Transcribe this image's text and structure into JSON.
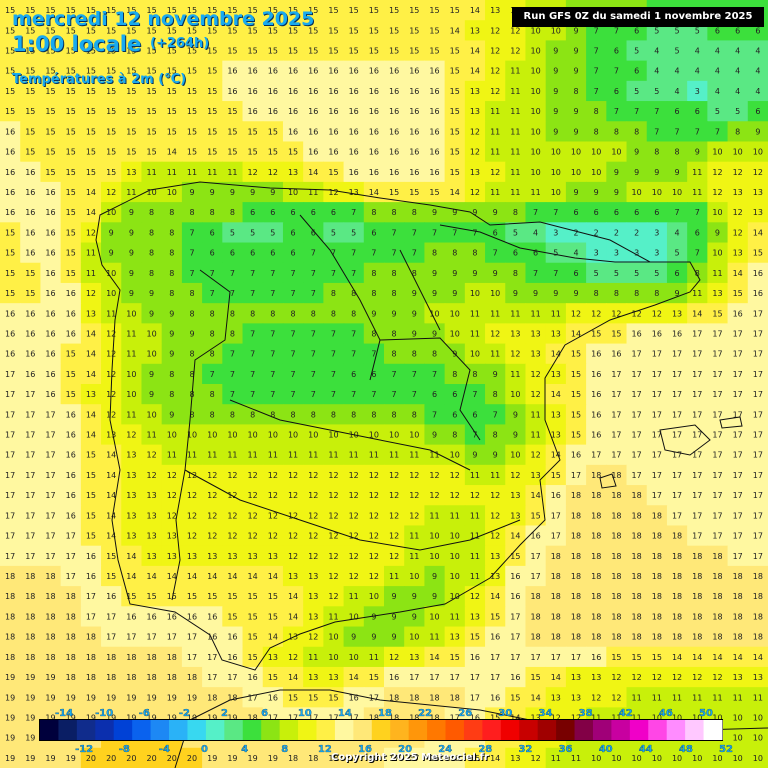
{
  "header": {
    "date_label": "mercredi 12 novembre 2025",
    "time_label": "1:00 locale",
    "lead_label": "(+264h)",
    "parameter_label": "Températures à 2m (°C)"
  },
  "run_label": "Run GFS 0Z du samedi 1 novembre 2025",
  "copyright": "Copyright 2025 Meteociel.fr",
  "legend": {
    "upper_ticks": [
      "-14",
      "-10",
      "-6",
      "-2",
      "2",
      "6",
      "10",
      "14",
      "18",
      "22",
      "26",
      "30",
      "34",
      "38",
      "42",
      "46",
      "50"
    ],
    "lower_ticks": [
      "-12",
      "-8",
      "-4",
      "0",
      "4",
      "8",
      "12",
      "16",
      "20",
      "24",
      "28",
      "32",
      "36",
      "40",
      "44",
      "48",
      "52"
    ],
    "colors": [
      "#00003c",
      "#0a1e64",
      "#102c8c",
      "#0b2fae",
      "#0041d6",
      "#0a62ee",
      "#1d88f4",
      "#2ab2f7",
      "#38d8f0",
      "#55f0c8",
      "#5ae884",
      "#3ce03c",
      "#8ce414",
      "#c8f00a",
      "#f0f514",
      "#fff046",
      "#fff8a0",
      "#ffe878",
      "#ffd21e",
      "#ffb41e",
      "#ff960a",
      "#ff7800",
      "#ff5a00",
      "#ff3c14",
      "#ff1e1e",
      "#f00000",
      "#c80000",
      "#a00000",
      "#780000",
      "#820046",
      "#a00078",
      "#c800a0",
      "#f000c8",
      "#ff46e6",
      "#ff8cff",
      "#ffc8ff",
      "#ffffff"
    ]
  },
  "temperature_grid": {
    "columns": 38,
    "rows": 38,
    "rows_data": [
      "15 15 15 15 15 15 15 15 15 15 15 15 15 15 15 15 15 15 15 15 15 15 15 14 13 12 11 10 9 9 8 8 7 7 6 6 6 6",
      "15 15 15 15 15 15 15 15 15 15 15 15 15 15 15 15 15 15 15 15 15 15 14 13 12 12 10 10 9 7 7 6 5 5 5 6 6 6",
      "15 15 15 15 15 15 15 15 15 15 15 15 15 15 15 15 15 15 15 15 15 15 15 14 12 12 10 9 9 7 6 5 4 5 4 4 4 4",
      "15 15 15 15 15 15 15 15 15 15 15 16 16 16 16 16 16 16 16 16 16 16 15 14 12 11 10 9 9 7 7 6 4 4 4 4 4 4",
      "15 15 15 15 15 15 15 15 15 15 15 16 16 16 16 16 16 16 16 16 16 16 15 13 12 11 10 9 8 7 6 5 5 4 3 4 4 4",
      "15 15 15 15 15 15 15 15 15 15 15 15 16 16 16 16 16 16 16 16 16 16 15 13 11 11 10 9 9 8 7 7 7 6 6 5 5 6",
      "16 15 15 15 15 15 15 15 15 15 15 15 15 15 16 16 16 16 16 16 16 16 15 12 11 11 10 9 9 8 8 8 7 7 7 7 8 9",
      "16 15 15 15 15 15 15 15 14 15 15 15 15 15 15 16 16 16 16 16 16 16 15 12 11 11 10 10 10 10 10 9 8 8 9 10 10 10",
      "16 16 15 15 15 15 13 11 11 11 11 11 12 12 13 14 15 16 16 16 16 16 15 13 12 11 10 10 10 10 9 9 9 9 11 12 12 12",
      "16 16 16 15 14 12 11 10 10 9 9 9 9 9 10 11 12 13 14 15 15 15 14 12 11 11 11 10 9 9 9 10 10 10 11 12 13 13",
      "16 16 16 15 14 10 9 8 8 8 8 8 6 6 6 6 6 7 8 8 8 9 9 9 9 8 7 7 6 6 6 6 6 7 7 10 12 13",
      "15 16 16 15 12 9 9 8 8 7 6 5 5 5 6 6 5 5 6 7 7 7 7 7 6 5 4 3 2 2 2 2 3 4 6 9 12 14",
      "15 16 16 15 11 9 9 8 8 7 6 6 6 6 6 7 7 7 7 7 7 8 8 8 7 6 6 5 4 3 3 3 3 5 7 10 13 15",
      "15 15 16 15 11 10 9 8 8 7 7 7 7 7 7 7 7 7 8 8 8 9 9 9 9 8 7 7 6 5 5 5 5 6 8 11 14 16",
      "15 15 16 16 12 10 9 9 8 8 7 7 7 7 7 7 8 8 8 8 9 9 9 10 10 9 9 9 9 8 8 8 8 9 11 13 15 16",
      "16 16 16 16 13 11 10 9 9 8 8 8 8 8 8 8 8 8 9 9 9 10 10 11 11 11 11 11 12 12 12 12 12 13 14 15 16 17",
      "16 16 16 16 14 12 11 10 9 9 8 8 7 7 7 7 7 7 8 8 9 9 10 11 12 13 13 13 14 15 15 16 16 16 17 17 17 17",
      "16 16 16 15 14 12 11 10 9 8 8 7 7 7 7 7 7 7 7 8 8 8 9 10 11 12 13 14 15 16 16 17 17 17 17 17 17 17",
      "17 16 16 15 14 12 10 9 8 8 7 7 7 7 7 7 7 6 6 7 7 7 8 8 9 11 12 13 15 16 17 17 17 17 17 17 17 17",
      "17 17 16 15 13 12 10 9 8 8 8 7 7 7 7 7 7 7 7 7 7 6 6 7 8 10 12 14 15 16 17 17 17 17 17 17 17 17",
      "17 17 17 16 14 12 11 10 9 8 8 8 8 8 8 8 8 8 8 8 8 7 6 6 7 9 11 13 15 16 17 17 17 17 17 17 17 17",
      "17 17 17 16 14 13 12 11 10 10 10 10 10 10 10 10 10 10 10 10 10 9 8 7 8 9 11 13 15 16 17 17 17 17 17 17 17 17",
      "17 17 17 16 15 14 13 12 11 11 11 11 11 11 11 11 11 11 11 11 11 11 10 9 9 10 12 14 16 17 17 17 17 17 17 17 17 17",
      "17 17 17 16 15 14 13 12 12 12 12 12 12 12 12 12 12 12 12 12 12 12 12 11 11 12 13 15 17 18 18 17 17 17 17 17 17 17",
      "17 17 17 16 15 14 13 13 12 12 12 12 12 12 12 12 12 12 12 12 12 12 12 12 12 13 14 16 18 18 18 18 17 17 17 17 17 17",
      "17 17 17 16 15 14 13 13 12 12 12 12 12 12 12 12 12 12 12 12 12 11 11 11 12 13 15 17 18 18 18 18 18 17 17 17 17 17",
      "17 17 17 17 15 14 13 13 13 12 12 12 12 12 12 12 12 12 12 12 11 10 10 11 12 14 16 17 18 18 18 18 18 18 17 17 17 17",
      "17 17 17 17 16 15 14 13 13 13 13 13 13 13 12 12 12 12 12 12 11 10 10 11 13 15 17 18 18 18 18 18 18 18 18 18 17 17",
      "18 18 18 17 16 15 14 14 14 14 14 14 14 14 13 13 12 12 12 11 10 9 10 11 13 16 17 18 18 18 18 18 18 18 18 18 18 18",
      "18 18 18 18 17 16 15 15 15 15 15 15 15 15 14 13 12 11 10 9 9 9 10 12 14 16 18 18 18 18 18 18 18 18 18 18 18 18",
      "18 18 18 18 17 17 16 16 16 16 16 15 15 15 14 13 11 10 9 9 9 10 11 13 15 17 18 18 18 18 18 18 18 18 18 18 18 18",
      "18 18 18 18 18 17 17 17 17 17 16 16 15 14 13 12 10 9 9 9 10 11 13 15 16 17 18 18 18 18 18 18 18 18 18 18 18 18",
      "18 18 18 18 18 18 18 18 18 17 17 16 15 13 12 11 10 10 11 12 13 14 15 16 17 17 17 17 17 16 15 15 15 14 14 14 14 14",
      "19 19 19 18 18 18 18 18 18 18 17 17 16 15 14 13 13 14 15 16 17 17 17 17 17 16 15 14 13 13 12 12 12 12 12 12 13 13",
      "19 19 19 19 19 19 19 19 19 19 18 18 17 16 15 15 15 16 17 18 18 18 18 17 16 15 14 13 13 12 12 11 11 11 11 11 11 11",
      "19 19 19 19 19 19 19 19 19 19 19 19 18 17 17 17 17 17 18 18 18 18 17 16 15 14 13 12 12 11 11 11 10 10 10 10 10 10",
      "19 19 19 19 19 20 20 20 20 19 19 19 19 18 18 18 18 18 18 18 18 17 17 16 15 14 13 12 11 11 10 10 10 10 10 10 10 10",
      "19 19 19 19 20 20 20 20 20 20 19 19 19 19 18 18 18 18 18 17 17 16 16 15 14 13 12 11 11 10 10 10 10 10 10 10 10 10"
    ]
  }
}
